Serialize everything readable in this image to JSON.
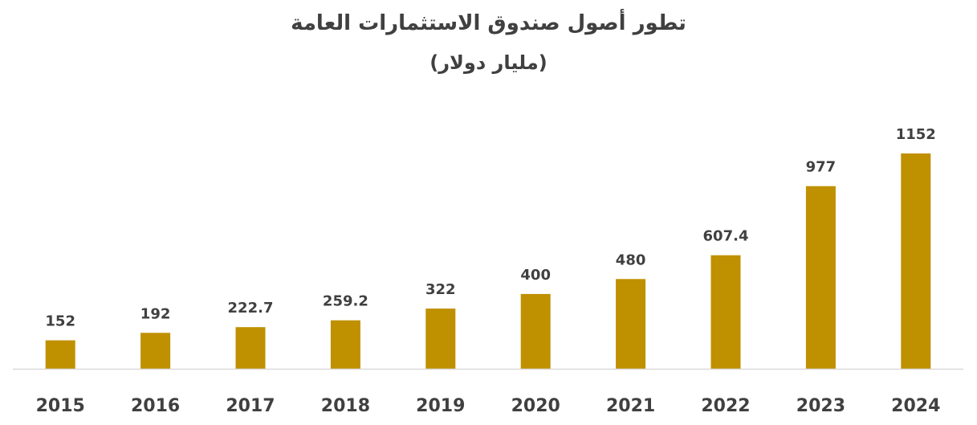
{
  "chart_data": {
    "type": "bar",
    "title": "تطور أصول صندوق الاستثمارات العامة",
    "subtitle": "(مليار دولار)",
    "categories": [
      "2015",
      "2016",
      "2017",
      "2018",
      "2019",
      "2020",
      "2021",
      "2022",
      "2023",
      "2024"
    ],
    "values": [
      152,
      192,
      222.7,
      259.2,
      322,
      400,
      480,
      607.4,
      977,
      1152
    ],
    "value_labels": [
      "152",
      "192",
      "222.7",
      "259.2",
      "322",
      "400",
      "480",
      "607.4",
      "977",
      "1152"
    ],
    "xlabel": "",
    "ylabel": "",
    "ylim": [
      0,
      1152
    ],
    "grid": false,
    "legend": "none",
    "colors": {
      "bar": "#BF9000",
      "axis": "#D9D9D9",
      "text": "#404040"
    }
  }
}
